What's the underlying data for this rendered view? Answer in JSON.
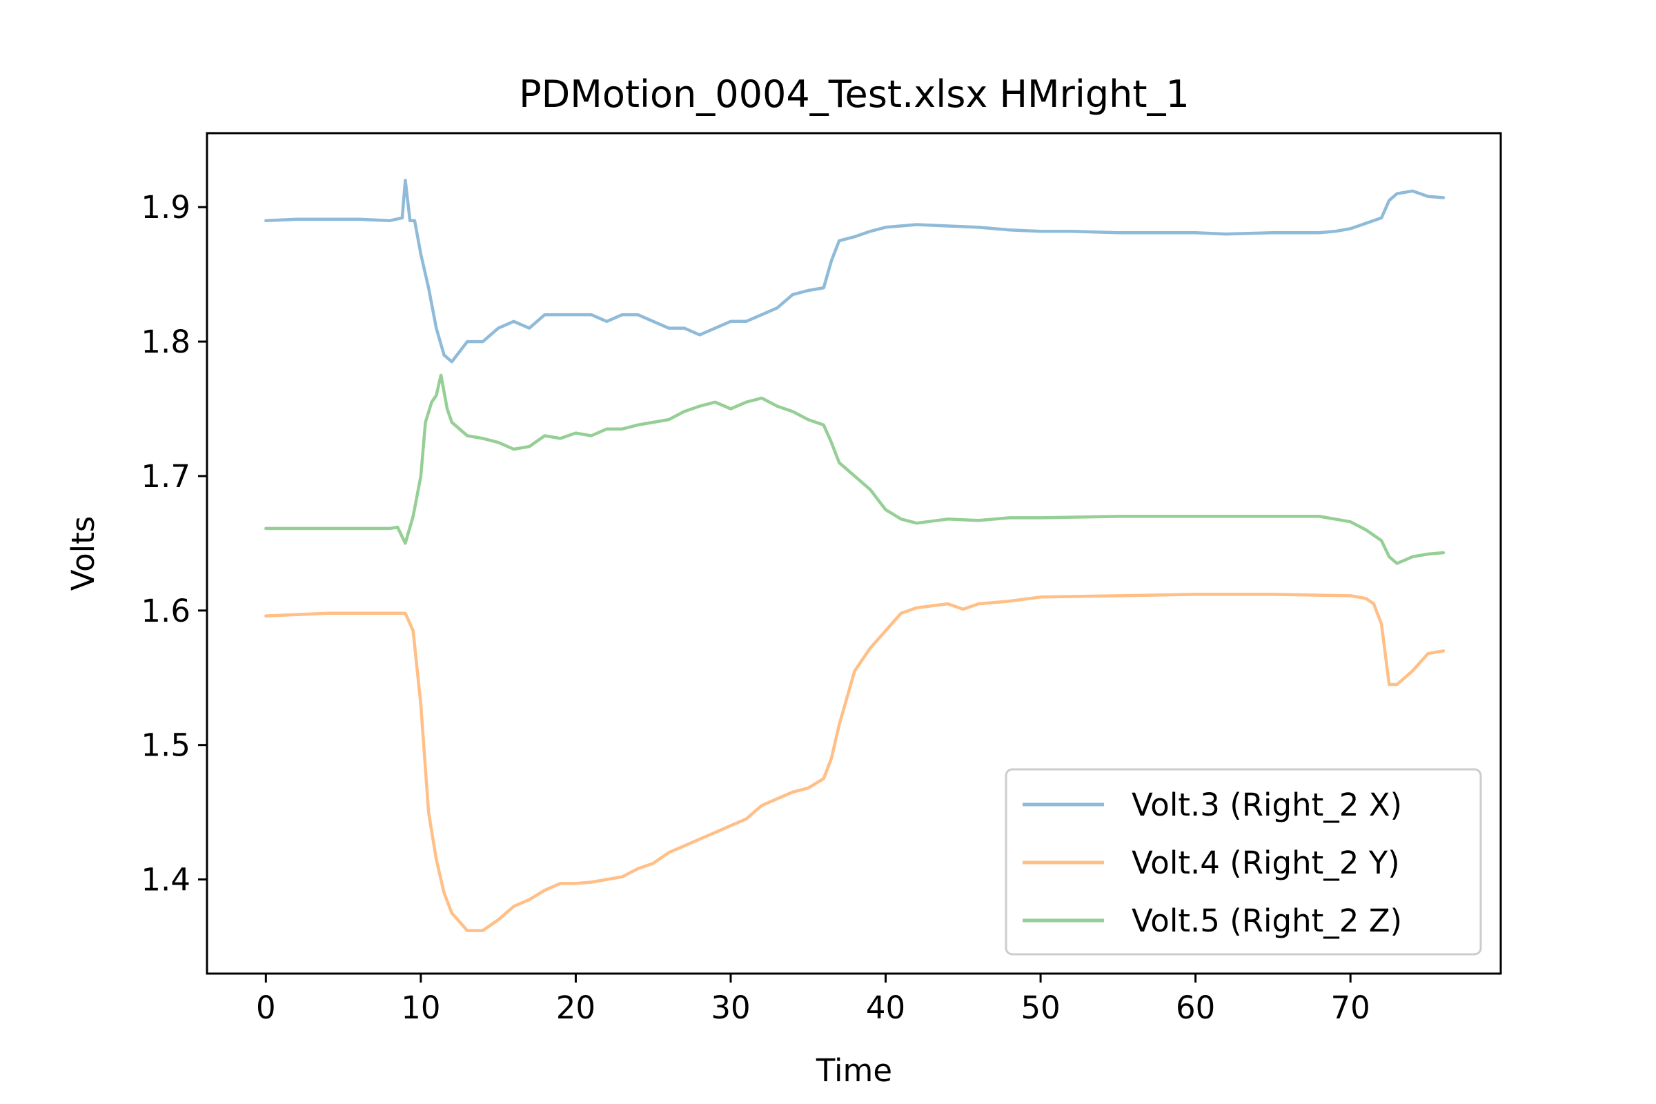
{
  "chart_data": {
    "type": "line",
    "title": "PDMotion_0004_Test.xlsx HMright_1",
    "xlabel": "Time",
    "ylabel": "Volts",
    "xlim": [
      -3.8,
      79.7
    ],
    "ylim": [
      1.33,
      1.955
    ],
    "xticks": [
      0,
      10,
      20,
      30,
      40,
      50,
      60,
      70
    ],
    "xtick_labels": [
      "0",
      "10",
      "20",
      "30",
      "40",
      "50",
      "60",
      "70"
    ],
    "yticks": [
      1.4,
      1.5,
      1.6,
      1.7,
      1.8,
      1.9
    ],
    "ytick_labels": [
      "1.4",
      "1.5",
      "1.6",
      "1.7",
      "1.8",
      "1.9"
    ],
    "grid": false,
    "legend_position": "lower-right",
    "series": [
      {
        "name": "Volt.3 (Right_2 X)",
        "color": "#1f77b4",
        "alpha": 0.5,
        "x": [
          0,
          2,
          4,
          6,
          8,
          8.8,
          9.0,
          9.3,
          9.6,
          10.0,
          10.5,
          11.0,
          11.5,
          12.0,
          13,
          14,
          15,
          16,
          17,
          18,
          19,
          20,
          21,
          22,
          23,
          24,
          25,
          26,
          27,
          28,
          29,
          30,
          31,
          32,
          33,
          34,
          35,
          36,
          36.5,
          37,
          38,
          39,
          40,
          42,
          44,
          46,
          48,
          50,
          52,
          55,
          58,
          60,
          62,
          65,
          68,
          69,
          70,
          71,
          72,
          72.5,
          73,
          74,
          75,
          76
        ],
        "y": [
          1.89,
          1.891,
          1.891,
          1.891,
          1.89,
          1.892,
          1.92,
          1.89,
          1.89,
          1.865,
          1.84,
          1.81,
          1.79,
          1.785,
          1.8,
          1.8,
          1.81,
          1.815,
          1.81,
          1.82,
          1.82,
          1.82,
          1.82,
          1.815,
          1.82,
          1.82,
          1.815,
          1.81,
          1.81,
          1.805,
          1.81,
          1.815,
          1.815,
          1.82,
          1.825,
          1.835,
          1.838,
          1.84,
          1.86,
          1.875,
          1.878,
          1.882,
          1.885,
          1.887,
          1.886,
          1.885,
          1.883,
          1.882,
          1.882,
          1.881,
          1.881,
          1.881,
          1.88,
          1.881,
          1.881,
          1.882,
          1.884,
          1.888,
          1.892,
          1.905,
          1.91,
          1.912,
          1.908,
          1.907
        ]
      },
      {
        "name": "Volt.4 (Right_2 Y)",
        "color": "#ff7f0e",
        "alpha": 0.5,
        "x": [
          0,
          2,
          4,
          6,
          8,
          9.0,
          9.5,
          10.0,
          10.5,
          11.0,
          11.5,
          12.0,
          13,
          14,
          15,
          16,
          17,
          18,
          19,
          20,
          21,
          22,
          23,
          24,
          25,
          26,
          27,
          28,
          29,
          30,
          31,
          32,
          33,
          34,
          35,
          36,
          36.5,
          37,
          38,
          39,
          40,
          41,
          42,
          44,
          45,
          46,
          48,
          50,
          55,
          60,
          65,
          70,
          71,
          71.5,
          72,
          72.5,
          73,
          74,
          75,
          76
        ],
        "y": [
          1.596,
          1.597,
          1.598,
          1.598,
          1.598,
          1.598,
          1.585,
          1.53,
          1.45,
          1.415,
          1.39,
          1.375,
          1.362,
          1.362,
          1.37,
          1.38,
          1.385,
          1.392,
          1.397,
          1.397,
          1.398,
          1.4,
          1.402,
          1.408,
          1.412,
          1.42,
          1.425,
          1.43,
          1.435,
          1.44,
          1.445,
          1.455,
          1.46,
          1.465,
          1.468,
          1.475,
          1.49,
          1.515,
          1.555,
          1.572,
          1.585,
          1.598,
          1.602,
          1.605,
          1.601,
          1.605,
          1.607,
          1.61,
          1.611,
          1.612,
          1.612,
          1.611,
          1.609,
          1.605,
          1.59,
          1.545,
          1.545,
          1.555,
          1.568,
          1.57
        ]
      },
      {
        "name": "Volt.5 (Right_2 Z)",
        "color": "#2ca02c",
        "alpha": 0.5,
        "x": [
          0,
          2,
          4,
          6,
          8,
          8.5,
          9.0,
          9.5,
          10.0,
          10.3,
          10.7,
          11.0,
          11.3,
          11.7,
          12.0,
          13,
          14,
          15,
          16,
          17,
          18,
          19,
          20,
          21,
          22,
          23,
          24,
          25,
          26,
          27,
          28,
          29,
          30,
          31,
          32,
          33,
          34,
          35,
          36,
          36.5,
          37,
          38,
          39,
          40,
          41,
          42,
          44,
          46,
          48,
          50,
          55,
          60,
          65,
          68,
          70,
          71,
          72,
          72.5,
          73,
          74,
          75,
          76
        ],
        "y": [
          1.661,
          1.661,
          1.661,
          1.661,
          1.661,
          1.662,
          1.65,
          1.67,
          1.7,
          1.74,
          1.755,
          1.76,
          1.775,
          1.75,
          1.74,
          1.73,
          1.728,
          1.725,
          1.72,
          1.722,
          1.73,
          1.728,
          1.732,
          1.73,
          1.735,
          1.735,
          1.738,
          1.74,
          1.742,
          1.748,
          1.752,
          1.755,
          1.75,
          1.755,
          1.758,
          1.752,
          1.748,
          1.742,
          1.738,
          1.725,
          1.71,
          1.7,
          1.69,
          1.675,
          1.668,
          1.665,
          1.668,
          1.667,
          1.669,
          1.669,
          1.67,
          1.67,
          1.67,
          1.67,
          1.666,
          1.66,
          1.652,
          1.64,
          1.635,
          1.64,
          1.642,
          1.643
        ]
      }
    ]
  }
}
